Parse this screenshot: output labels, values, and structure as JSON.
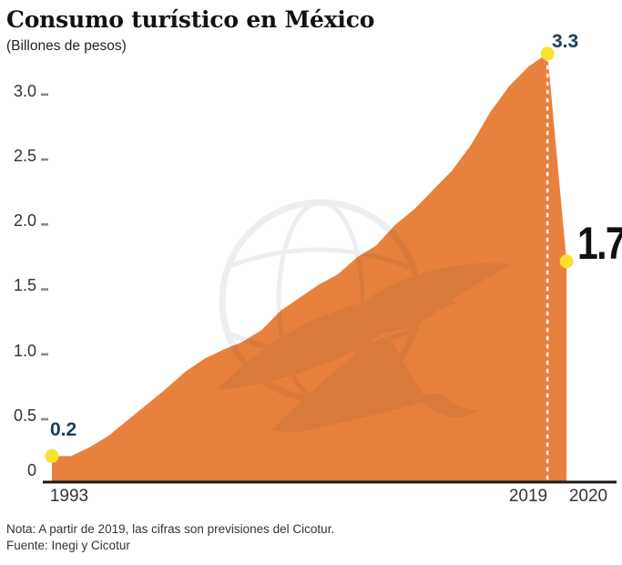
{
  "header": {
    "title": "Consumo turístico en México",
    "subtitle": "(Billones de pesos)"
  },
  "notes": {
    "note": "Nota: A partir de 2019, las cifras son previsiones del Cicotur.",
    "source": "Fuente: Inegi y Cicotur"
  },
  "colors": {
    "area": "#E8813E",
    "marker_fill": "#F9E12C",
    "annotation_navy": "#1C3E57",
    "annotation_black": "#111111",
    "axis": "#1A1A1A",
    "tick_dash": "#8a8a8a",
    "dashed_divider": "#FFFFFF"
  },
  "chart_data": {
    "type": "area",
    "title": "Consumo turístico en México",
    "ylabel": "(Billones de pesos)",
    "x": [
      1993,
      1994,
      1995,
      1996,
      1997,
      1998,
      1999,
      2000,
      2001,
      2002,
      2003,
      2004,
      2005,
      2006,
      2007,
      2008,
      2009,
      2010,
      2011,
      2012,
      2013,
      2014,
      2015,
      2016,
      2017,
      2018,
      2019,
      2020
    ],
    "values": [
      0.2,
      0.2,
      0.27,
      0.36,
      0.48,
      0.6,
      0.72,
      0.85,
      0.95,
      1.02,
      1.08,
      1.17,
      1.32,
      1.42,
      1.52,
      1.6,
      1.73,
      1.82,
      1.98,
      2.1,
      2.25,
      2.4,
      2.6,
      2.85,
      3.05,
      3.2,
      3.3,
      1.7
    ],
    "ylim": [
      0,
      3.3
    ],
    "yticks": [
      {
        "label": "3.0",
        "value": 3.0,
        "dash": true
      },
      {
        "label": "2.5",
        "value": 2.5,
        "dash": true
      },
      {
        "label": "2.0",
        "value": 2.0,
        "dash": true
      },
      {
        "label": "1.5",
        "value": 1.5,
        "dash": true
      },
      {
        "label": "1.0",
        "value": 1.0,
        "dash": true
      },
      {
        "label": "0.5",
        "value": 0.5,
        "dash": true
      },
      {
        "label": "0",
        "value": 0,
        "dash": false
      }
    ],
    "xticks": [
      {
        "label": "1993",
        "year": 1993
      },
      {
        "label": "2019",
        "year": 2019
      },
      {
        "label": "2020",
        "year": 2020
      }
    ],
    "annotations": [
      {
        "label": "0.2",
        "year": 1993,
        "value": 0.2,
        "style": "small"
      },
      {
        "label": "3.3",
        "year": 2019,
        "value": 3.3,
        "style": "small"
      },
      {
        "label": "1.7",
        "year": 2020,
        "value": 1.7,
        "style": "big"
      }
    ],
    "forecast_divider_year": 2019,
    "grid": false,
    "legend": false
  }
}
